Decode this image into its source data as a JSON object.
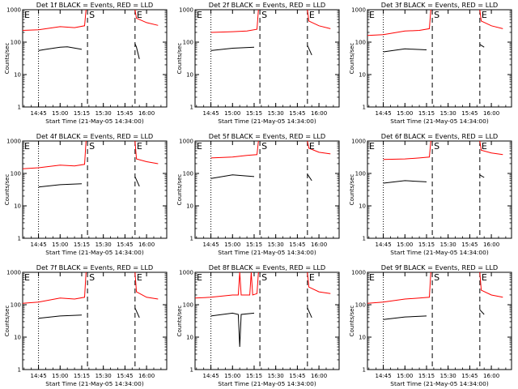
{
  "chart_data": [
    {
      "type": "line",
      "title": "Det 1f BLACK = Events, RED = LLD",
      "xlabel": "Start Time (21-May-05 14:34:00)",
      "ylabel": "Counts/sec",
      "y_scale": "log",
      "ylim": [
        1,
        1000
      ],
      "y_ticks": [
        "1",
        "10",
        "100",
        "1000"
      ],
      "x_ticks": [
        "14:45",
        "15:00",
        "15:15",
        "15:30",
        "15:45",
        "16:00"
      ],
      "markers": [
        {
          "label": "E",
          "time": "14:34"
        },
        {
          "label": "S",
          "time": "15:19"
        },
        {
          "label": "E",
          "time": "15:52"
        }
      ],
      "series": [
        {
          "color": "#ff0000",
          "x": [
            "14:34",
            "14:45",
            "15:00",
            "15:10",
            "15:17",
            "15:18",
            "15:52",
            "15:53",
            "16:00",
            "16:08"
          ],
          "values": [
            230,
            240,
            300,
            280,
            320,
            1000,
            1000,
            550,
            400,
            330
          ]
        },
        {
          "color": "#000000",
          "x": [
            "14:45",
            "14:50",
            "15:00",
            "15:05",
            "15:15",
            "15:52",
            "15:53",
            "15:55"
          ],
          "values": [
            55,
            60,
            70,
            72,
            60,
            90,
            70,
            30
          ]
        }
      ]
    },
    {
      "type": "line",
      "title": "Det 2f BLACK = Events, RED = LLD",
      "xlabel": "Start Time (21-May-05 14:34:00)",
      "ylabel": "Counts/sec",
      "y_scale": "log",
      "ylim": [
        1,
        1000
      ],
      "y_ticks": [
        "1",
        "10",
        "100",
        "1000"
      ],
      "x_ticks": [
        "14:45",
        "15:00",
        "15:15",
        "15:30",
        "15:45",
        "16:00"
      ],
      "markers": [
        {
          "label": "E",
          "time": "14:34"
        },
        {
          "label": "S",
          "time": "15:19"
        },
        {
          "label": "E",
          "time": "15:52"
        }
      ],
      "series": [
        {
          "color": "#ff0000",
          "x": [
            "14:45",
            "15:00",
            "15:10",
            "15:17",
            "15:18",
            "15:52",
            "15:53",
            "16:00",
            "16:08"
          ],
          "values": [
            200,
            210,
            220,
            250,
            1000,
            1000,
            450,
            320,
            260
          ]
        },
        {
          "color": "#000000",
          "x": [
            "14:45",
            "15:00",
            "15:15",
            "15:52",
            "15:55"
          ],
          "values": [
            55,
            65,
            70,
            80,
            40
          ]
        }
      ]
    },
    {
      "type": "line",
      "title": "Det 3f BLACK = Events, RED = LLD",
      "xlabel": "Start Time (21-May-05 14:34:00)",
      "ylabel": "Counts/sec",
      "y_scale": "log",
      "ylim": [
        1,
        1000
      ],
      "y_ticks": [
        "1",
        "10",
        "100",
        "1000"
      ],
      "x_ticks": [
        "14:45",
        "15:00",
        "15:15",
        "15:30",
        "15:45",
        "16:00"
      ],
      "markers": [
        {
          "label": "E",
          "time": "14:34"
        },
        {
          "label": "S",
          "time": "15:19"
        },
        {
          "label": "E",
          "time": "15:52"
        }
      ],
      "series": [
        {
          "color": "#ff0000",
          "x": [
            "14:34",
            "14:45",
            "15:00",
            "15:10",
            "15:17",
            "15:18",
            "15:52",
            "15:53",
            "16:00",
            "16:08"
          ],
          "values": [
            160,
            170,
            220,
            230,
            260,
            1000,
            1000,
            450,
            320,
            260
          ]
        },
        {
          "color": "#000000",
          "x": [
            "14:45",
            "15:00",
            "15:15",
            "15:52",
            "15:55"
          ],
          "values": [
            50,
            62,
            58,
            85,
            70
          ]
        }
      ]
    },
    {
      "type": "line",
      "title": "Det 4f BLACK = Events, RED = LLD",
      "xlabel": "Start Time (21-May-05 14:34:00)",
      "ylabel": "Counts/sec",
      "y_scale": "log",
      "ylim": [
        1,
        1000
      ],
      "y_ticks": [
        "1",
        "10",
        "100",
        "1000"
      ],
      "x_ticks": [
        "14:45",
        "15:00",
        "15:15",
        "15:30",
        "15:45",
        "16:00"
      ],
      "markers": [
        {
          "label": "E",
          "time": "14:34"
        },
        {
          "label": "S",
          "time": "15:19"
        },
        {
          "label": "E",
          "time": "15:52"
        }
      ],
      "series": [
        {
          "color": "#ff0000",
          "x": [
            "14:34",
            "14:45",
            "15:00",
            "15:10",
            "15:17",
            "15:18",
            "15:52",
            "15:53",
            "16:00",
            "16:08"
          ],
          "values": [
            140,
            150,
            180,
            170,
            190,
            1000,
            1000,
            280,
            230,
            200
          ]
        },
        {
          "color": "#000000",
          "x": [
            "14:45",
            "15:00",
            "15:15",
            "15:52",
            "15:55"
          ],
          "values": [
            38,
            45,
            48,
            80,
            40
          ]
        }
      ]
    },
    {
      "type": "line",
      "title": "Det 5f BLACK = Events, RED = LLD",
      "xlabel": "Start Time (21-May-05 14:34:00)",
      "ylabel": "Counts/sec",
      "y_scale": "log",
      "ylim": [
        1,
        1000
      ],
      "y_ticks": [
        "1",
        "10",
        "100",
        "1000"
      ],
      "x_ticks": [
        "14:45",
        "15:00",
        "15:15",
        "15:30",
        "15:45",
        "16:00"
      ],
      "markers": [
        {
          "label": "E",
          "time": "14:34"
        },
        {
          "label": "S",
          "time": "15:19"
        },
        {
          "label": "E",
          "time": "15:52"
        }
      ],
      "series": [
        {
          "color": "#ff0000",
          "x": [
            "14:45",
            "15:00",
            "15:10",
            "15:17",
            "15:18",
            "15:52",
            "15:53",
            "16:00",
            "16:08"
          ],
          "values": [
            300,
            320,
            360,
            380,
            1000,
            1000,
            600,
            450,
            400
          ]
        },
        {
          "color": "#000000",
          "x": [
            "14:45",
            "15:00",
            "15:15",
            "15:52",
            "15:55"
          ],
          "values": [
            70,
            90,
            80,
            95,
            60
          ]
        }
      ]
    },
    {
      "type": "line",
      "title": "Det 6f BLACK = Events, RED = LLD",
      "xlabel": "Start Time (21-May-05 14:34:00)",
      "ylabel": "Counts/sec",
      "y_scale": "log",
      "ylim": [
        1,
        1000
      ],
      "y_ticks": [
        "1",
        "10",
        "100",
        "1000"
      ],
      "x_ticks": [
        "14:45",
        "15:00",
        "15:15",
        "15:30",
        "15:45",
        "16:00"
      ],
      "markers": [
        {
          "label": "E",
          "time": "14:34"
        },
        {
          "label": "S",
          "time": "15:19"
        },
        {
          "label": "E",
          "time": "15:52"
        }
      ],
      "series": [
        {
          "color": "#ff0000",
          "x": [
            "14:45",
            "15:00",
            "15:10",
            "15:17",
            "15:18",
            "15:52",
            "15:53",
            "16:00",
            "16:08"
          ],
          "values": [
            270,
            280,
            300,
            320,
            1000,
            1000,
            520,
            430,
            380
          ]
        },
        {
          "color": "#000000",
          "x": [
            "14:45",
            "15:00",
            "15:15",
            "15:52",
            "15:55"
          ],
          "values": [
            50,
            60,
            55,
            90,
            75
          ]
        }
      ]
    },
    {
      "type": "line",
      "title": "Det 7f BLACK = Events, RED = LLD",
      "xlabel": "Start Time (21-May-05 14:34:00)",
      "ylabel": "Counts/sec",
      "y_scale": "log",
      "ylim": [
        1,
        1000
      ],
      "y_ticks": [
        "1",
        "10",
        "100",
        "1000"
      ],
      "x_ticks": [
        "14:45",
        "15:00",
        "15:15",
        "15:30",
        "15:45",
        "16:00"
      ],
      "markers": [
        {
          "label": "E",
          "time": "14:34"
        },
        {
          "label": "S",
          "time": "15:19"
        },
        {
          "label": "E",
          "time": "15:52"
        }
      ],
      "series": [
        {
          "color": "#ff0000",
          "x": [
            "14:34",
            "14:45",
            "15:00",
            "15:10",
            "15:17",
            "15:18",
            "15:52",
            "15:53",
            "16:00",
            "16:08"
          ],
          "values": [
            110,
            120,
            160,
            150,
            170,
            1000,
            1000,
            250,
            170,
            150
          ]
        },
        {
          "color": "#000000",
          "x": [
            "14:45",
            "15:00",
            "15:15",
            "15:52",
            "15:55"
          ],
          "values": [
            38,
            45,
            48,
            80,
            40
          ]
        }
      ]
    },
    {
      "type": "line",
      "title": "Det 8f BLACK = Events, RED = LLD",
      "xlabel": "Start Time (21-May-05 14:34:00)",
      "ylabel": "Counts/sec",
      "y_scale": "log",
      "ylim": [
        1,
        1000
      ],
      "y_ticks": [
        "1",
        "10",
        "100",
        "1000"
      ],
      "x_ticks": [
        "14:45",
        "15:00",
        "15:15",
        "15:30",
        "15:45",
        "16:00"
      ],
      "markers": [
        {
          "label": "E",
          "time": "14:34"
        },
        {
          "label": "S",
          "time": "15:19"
        },
        {
          "label": "E",
          "time": "15:52"
        }
      ],
      "series": [
        {
          "color": "#ff0000",
          "x": [
            "14:34",
            "14:45",
            "15:00",
            "15:04",
            "15:05",
            "15:06",
            "15:12",
            "15:13",
            "15:14",
            "15:17",
            "15:18",
            "15:52",
            "15:53",
            "16:00",
            "16:08"
          ],
          "values": [
            160,
            170,
            200,
            200,
            1000,
            200,
            200,
            1000,
            200,
            220,
            1000,
            1000,
            350,
            250,
            220
          ]
        },
        {
          "color": "#000000",
          "x": [
            "14:45",
            "15:00",
            "15:04",
            "15:05",
            "15:06",
            "15:15",
            "15:52",
            "15:55"
          ],
          "values": [
            45,
            55,
            50,
            5,
            50,
            55,
            80,
            40
          ]
        }
      ]
    },
    {
      "type": "line",
      "title": "Det 9f BLACK = Events, RED = LLD",
      "xlabel": "Start Time (21-May-05 14:34:00)",
      "ylabel": "Counts/sec",
      "y_scale": "log",
      "ylim": [
        1,
        1000
      ],
      "y_ticks": [
        "1",
        "10",
        "100",
        "1000"
      ],
      "x_ticks": [
        "14:45",
        "15:00",
        "15:15",
        "15:30",
        "15:45",
        "16:00"
      ],
      "markers": [
        {
          "label": "E",
          "time": "14:34"
        },
        {
          "label": "S",
          "time": "15:19"
        },
        {
          "label": "E",
          "time": "15:52"
        }
      ],
      "series": [
        {
          "color": "#ff0000",
          "x": [
            "14:34",
            "14:45",
            "15:00",
            "15:10",
            "15:17",
            "15:18",
            "15:52",
            "15:53",
            "16:00",
            "16:08"
          ],
          "values": [
            110,
            120,
            150,
            160,
            170,
            1000,
            1000,
            280,
            200,
            170
          ]
        },
        {
          "color": "#000000",
          "x": [
            "14:45",
            "15:00",
            "15:15",
            "15:52",
            "15:55"
          ],
          "values": [
            35,
            42,
            45,
            70,
            50
          ]
        }
      ]
    }
  ]
}
